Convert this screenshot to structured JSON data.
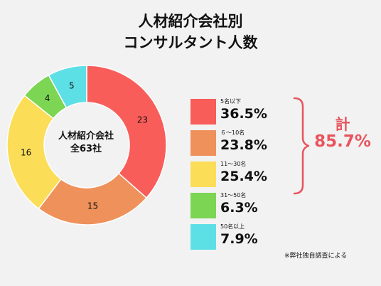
{
  "title_line1": "人材紹介会社別",
  "title_line2": "コンサルタント人数",
  "center_line1": "人材紹介会社",
  "center_line2": "全63社",
  "total": {
    "label": "計",
    "value": "85.7%"
  },
  "footnote": "※弊社独自調査による",
  "legend": [
    {
      "range": "5名以下",
      "percent": "36.5%"
    },
    {
      "range": "６～10名",
      "percent": "23.8%"
    },
    {
      "range": "11～30名",
      "percent": "25.4%"
    },
    {
      "range": "31～50名",
      "percent": "6.3%"
    },
    {
      "range": "50名以上",
      "percent": "7.9%"
    }
  ],
  "chart_data": {
    "type": "pie",
    "categories": [
      "5名以下",
      "６～10名",
      "11～30名",
      "31～50名",
      "50名以上"
    ],
    "values": [
      23,
      15,
      16,
      4,
      5
    ],
    "percent_labels": [
      "36.5%",
      "23.8%",
      "25.4%",
      "6.3%",
      "7.9%"
    ],
    "colors": [
      "#f85d5a",
      "#ee915b",
      "#fbdd58",
      "#7dd554",
      "#5ddfe6"
    ]
  },
  "colors": {
    "accent": "#e8545d",
    "background": "#f2f2f2"
  }
}
